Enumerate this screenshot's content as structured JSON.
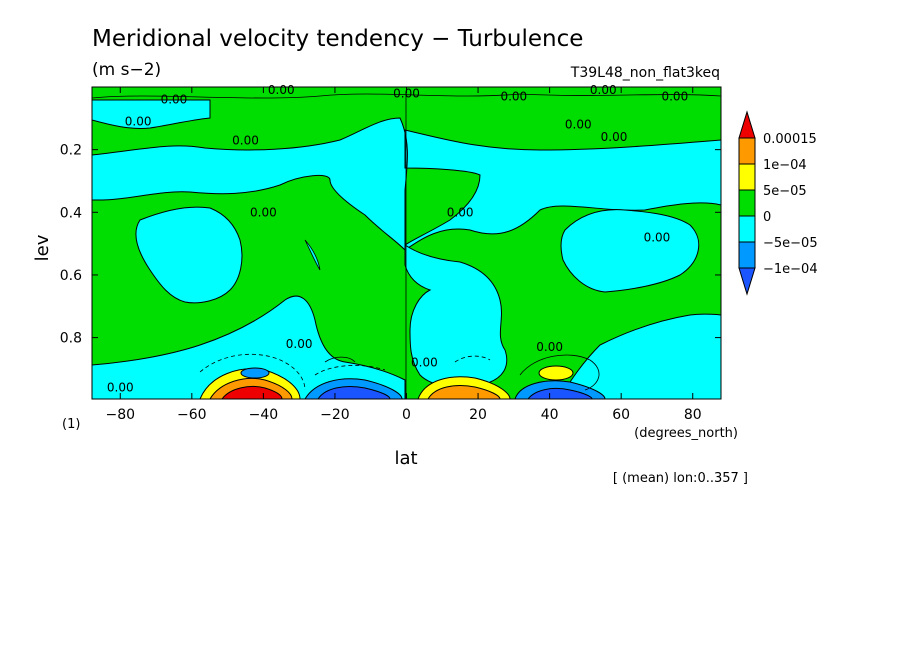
{
  "chart_data": {
    "type": "heatmap",
    "title": "Meridional velocity tendency − Turbulence",
    "units": "(m s−2)",
    "experiment": "T39L48_non_flat3keq",
    "xlabel": "lat",
    "xunits": "(degrees_north)",
    "ylabel": "lev",
    "yunits": "(1)",
    "footnote": "[ (mean) lon:0..357 ]",
    "xlim": [
      -87.9,
      87.9
    ],
    "ylim": [
      0.0,
      0.996
    ],
    "y_inverted": true,
    "xticks": [
      {
        "value": -80,
        "label": "−80"
      },
      {
        "value": -60,
        "label": "−60"
      },
      {
        "value": -40,
        "label": "−40"
      },
      {
        "value": -20,
        "label": "−20"
      },
      {
        "value": 0,
        "label": "0"
      },
      {
        "value": 20,
        "label": "20"
      },
      {
        "value": 40,
        "label": "40"
      },
      {
        "value": 60,
        "label": "60"
      },
      {
        "value": 80,
        "label": "80"
      }
    ],
    "yticks": [
      {
        "value": 0.2,
        "label": "0.2"
      },
      {
        "value": 0.4,
        "label": "0.4"
      },
      {
        "value": 0.6,
        "label": "0.6"
      },
      {
        "value": 0.8,
        "label": "0.8"
      }
    ],
    "colorbar": {
      "levels": [
        {
          "label": "0.00015",
          "color": "#ff9900"
        },
        {
          "label": "1e−04",
          "color": "#ffff00"
        },
        {
          "label": "5e−05",
          "color": "#00dd00"
        },
        {
          "label": "0",
          "color": "#00ffff"
        },
        {
          "label": "−5e−05",
          "color": "#0099ff"
        },
        {
          "label": "−1e−04",
          "color": null
        }
      ],
      "top_arrow_color": "#ee0000",
      "bottom_arrow_color": "#1a55ff"
    },
    "contour_labels": [
      {
        "text": "0.00",
        "lat": -35,
        "lev": 0.01
      },
      {
        "text": "0.00",
        "lat": -65,
        "lev": 0.04
      },
      {
        "text": "0.00",
        "lat": -75,
        "lev": 0.11
      },
      {
        "text": "0.00",
        "lat": -45,
        "lev": 0.17
      },
      {
        "text": "0.00",
        "lat": -40,
        "lev": 0.4
      },
      {
        "text": "0.00",
        "lat": -30,
        "lev": 0.82
      },
      {
        "text": "0.00",
        "lat": -80,
        "lev": 0.96
      },
      {
        "text": "0.00",
        "lat": 0,
        "lev": 0.02
      },
      {
        "text": "0.00",
        "lat": 30,
        "lev": 0.03
      },
      {
        "text": "0.00",
        "lat": 55,
        "lev": 0.01
      },
      {
        "text": "0.00",
        "lat": 75,
        "lev": 0.03
      },
      {
        "text": "0.00",
        "lat": 48,
        "lev": 0.12
      },
      {
        "text": "0.00",
        "lat": 58,
        "lev": 0.16
      },
      {
        "text": "0.00",
        "lat": 15,
        "lev": 0.4
      },
      {
        "text": "0.00",
        "lat": 70,
        "lev": 0.48
      },
      {
        "text": "0.00",
        "lat": 40,
        "lev": 0.83
      },
      {
        "text": "0.00",
        "lat": 5,
        "lev": 0.88
      }
    ],
    "regions": [
      {
        "value_range": "0 to 5e-05",
        "color": "#00dd00",
        "description": "background field"
      },
      {
        "value_range": "-5e-05 to 0",
        "color": "#00ffff",
        "lat_range": [
          -88,
          88
        ],
        "lev_range": [
          0.1,
          0.4
        ],
        "description": "upper band"
      },
      {
        "value_range": "-5e-05 to 0",
        "color": "#00ffff",
        "lat_range": [
          2,
          30
        ],
        "lev_range": [
          0.15,
          0.92
        ],
        "description": "equatorial column"
      },
      {
        "value_range": "-5e-05 to 0",
        "color": "#00ffff",
        "lat_range": [
          -68,
          -43
        ],
        "lev_range": [
          0.4,
          0.68
        ],
        "description": "southern mid-level cell"
      },
      {
        "value_range": "-5e-05 to 0",
        "color": "#00ffff",
        "lat_range": [
          50,
          82
        ],
        "lev_range": [
          0.4,
          0.65
        ],
        "description": "northern mid-level cell"
      },
      {
        "value_range": "-5e-05 to 0",
        "color": "#00ffff",
        "lat_range": [
          -88,
          -20
        ],
        "lev_range": [
          0.78,
          0.97
        ],
        "description": "southern lower band"
      },
      {
        "value_range": "-5e-05 to 0",
        "color": "#00ffff",
        "lat_range": [
          55,
          88
        ],
        "lev_range": [
          0.75,
          0.97
        ],
        "description": "northern lower band"
      },
      {
        "value_range": "> 0.00015",
        "color": "#ee0000",
        "lat_range": [
          -60,
          -30
        ],
        "lev": 0.99,
        "description": "southern surface positive peak"
      },
      {
        "value_range": "< -1e-04",
        "color": "#1a55ff",
        "lat_range": [
          -28,
          -4
        ],
        "lev": 0.99,
        "description": "surface negative peak"
      },
      {
        "value_range": "1e-04 to 0.00015",
        "color": "#ff9900",
        "lat_range": [
          4,
          28
        ],
        "lev": 0.99,
        "description": "surface positive peak"
      },
      {
        "value_range": "< -1e-04",
        "color": "#1a55ff",
        "lat_range": [
          30,
          56
        ],
        "lev": 0.99,
        "description": "northern surface negative peak"
      },
      {
        "value_range": "5e-05 to 1e-04",
        "color": "#ffff00",
        "lat": 42,
        "lev": 0.945,
        "description": "northern low-level maximum"
      }
    ]
  }
}
